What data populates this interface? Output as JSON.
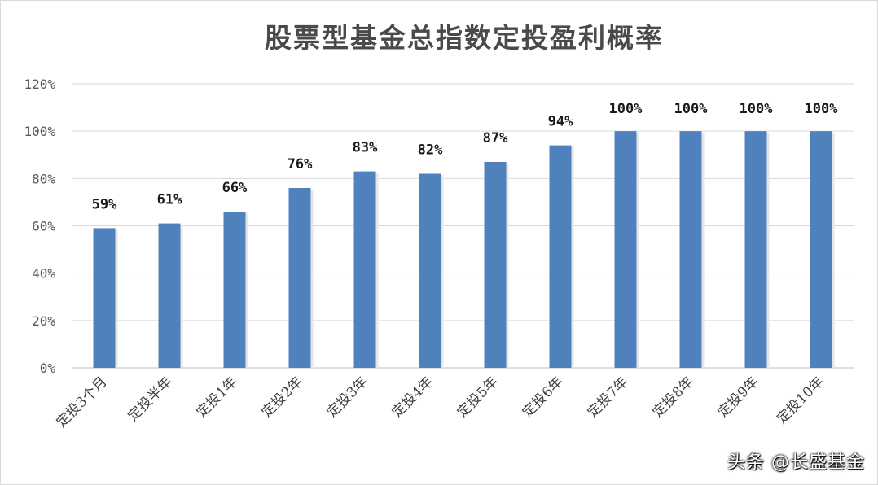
{
  "watermark": "头条 @长盛基金",
  "chart_data": {
    "type": "bar",
    "title": "股票型基金总指数定投盈利概率",
    "xlabel": "",
    "ylabel": "",
    "categories": [
      "定投3个月",
      "定投半年",
      "定投1年",
      "定投2年",
      "定投3年",
      "定投4年",
      "定投5年",
      "定投6年",
      "定投7年",
      "定投8年",
      "定投9年",
      "定投10年"
    ],
    "values": [
      59,
      61,
      66,
      76,
      83,
      82,
      87,
      94,
      100,
      100,
      100,
      100
    ],
    "data_labels": [
      "59%",
      "61%",
      "66%",
      "76%",
      "83%",
      "82%",
      "87%",
      "94%",
      "100%",
      "100%",
      "100%",
      "100%"
    ],
    "ylim": [
      0,
      120
    ],
    "y_ticks": [
      0,
      20,
      40,
      60,
      80,
      100,
      120
    ],
    "y_tick_labels": [
      "0%",
      "20%",
      "40%",
      "60%",
      "80%",
      "100%",
      "120%"
    ],
    "grid": true,
    "legend": "none",
    "bar_color": "#4f81bd"
  }
}
